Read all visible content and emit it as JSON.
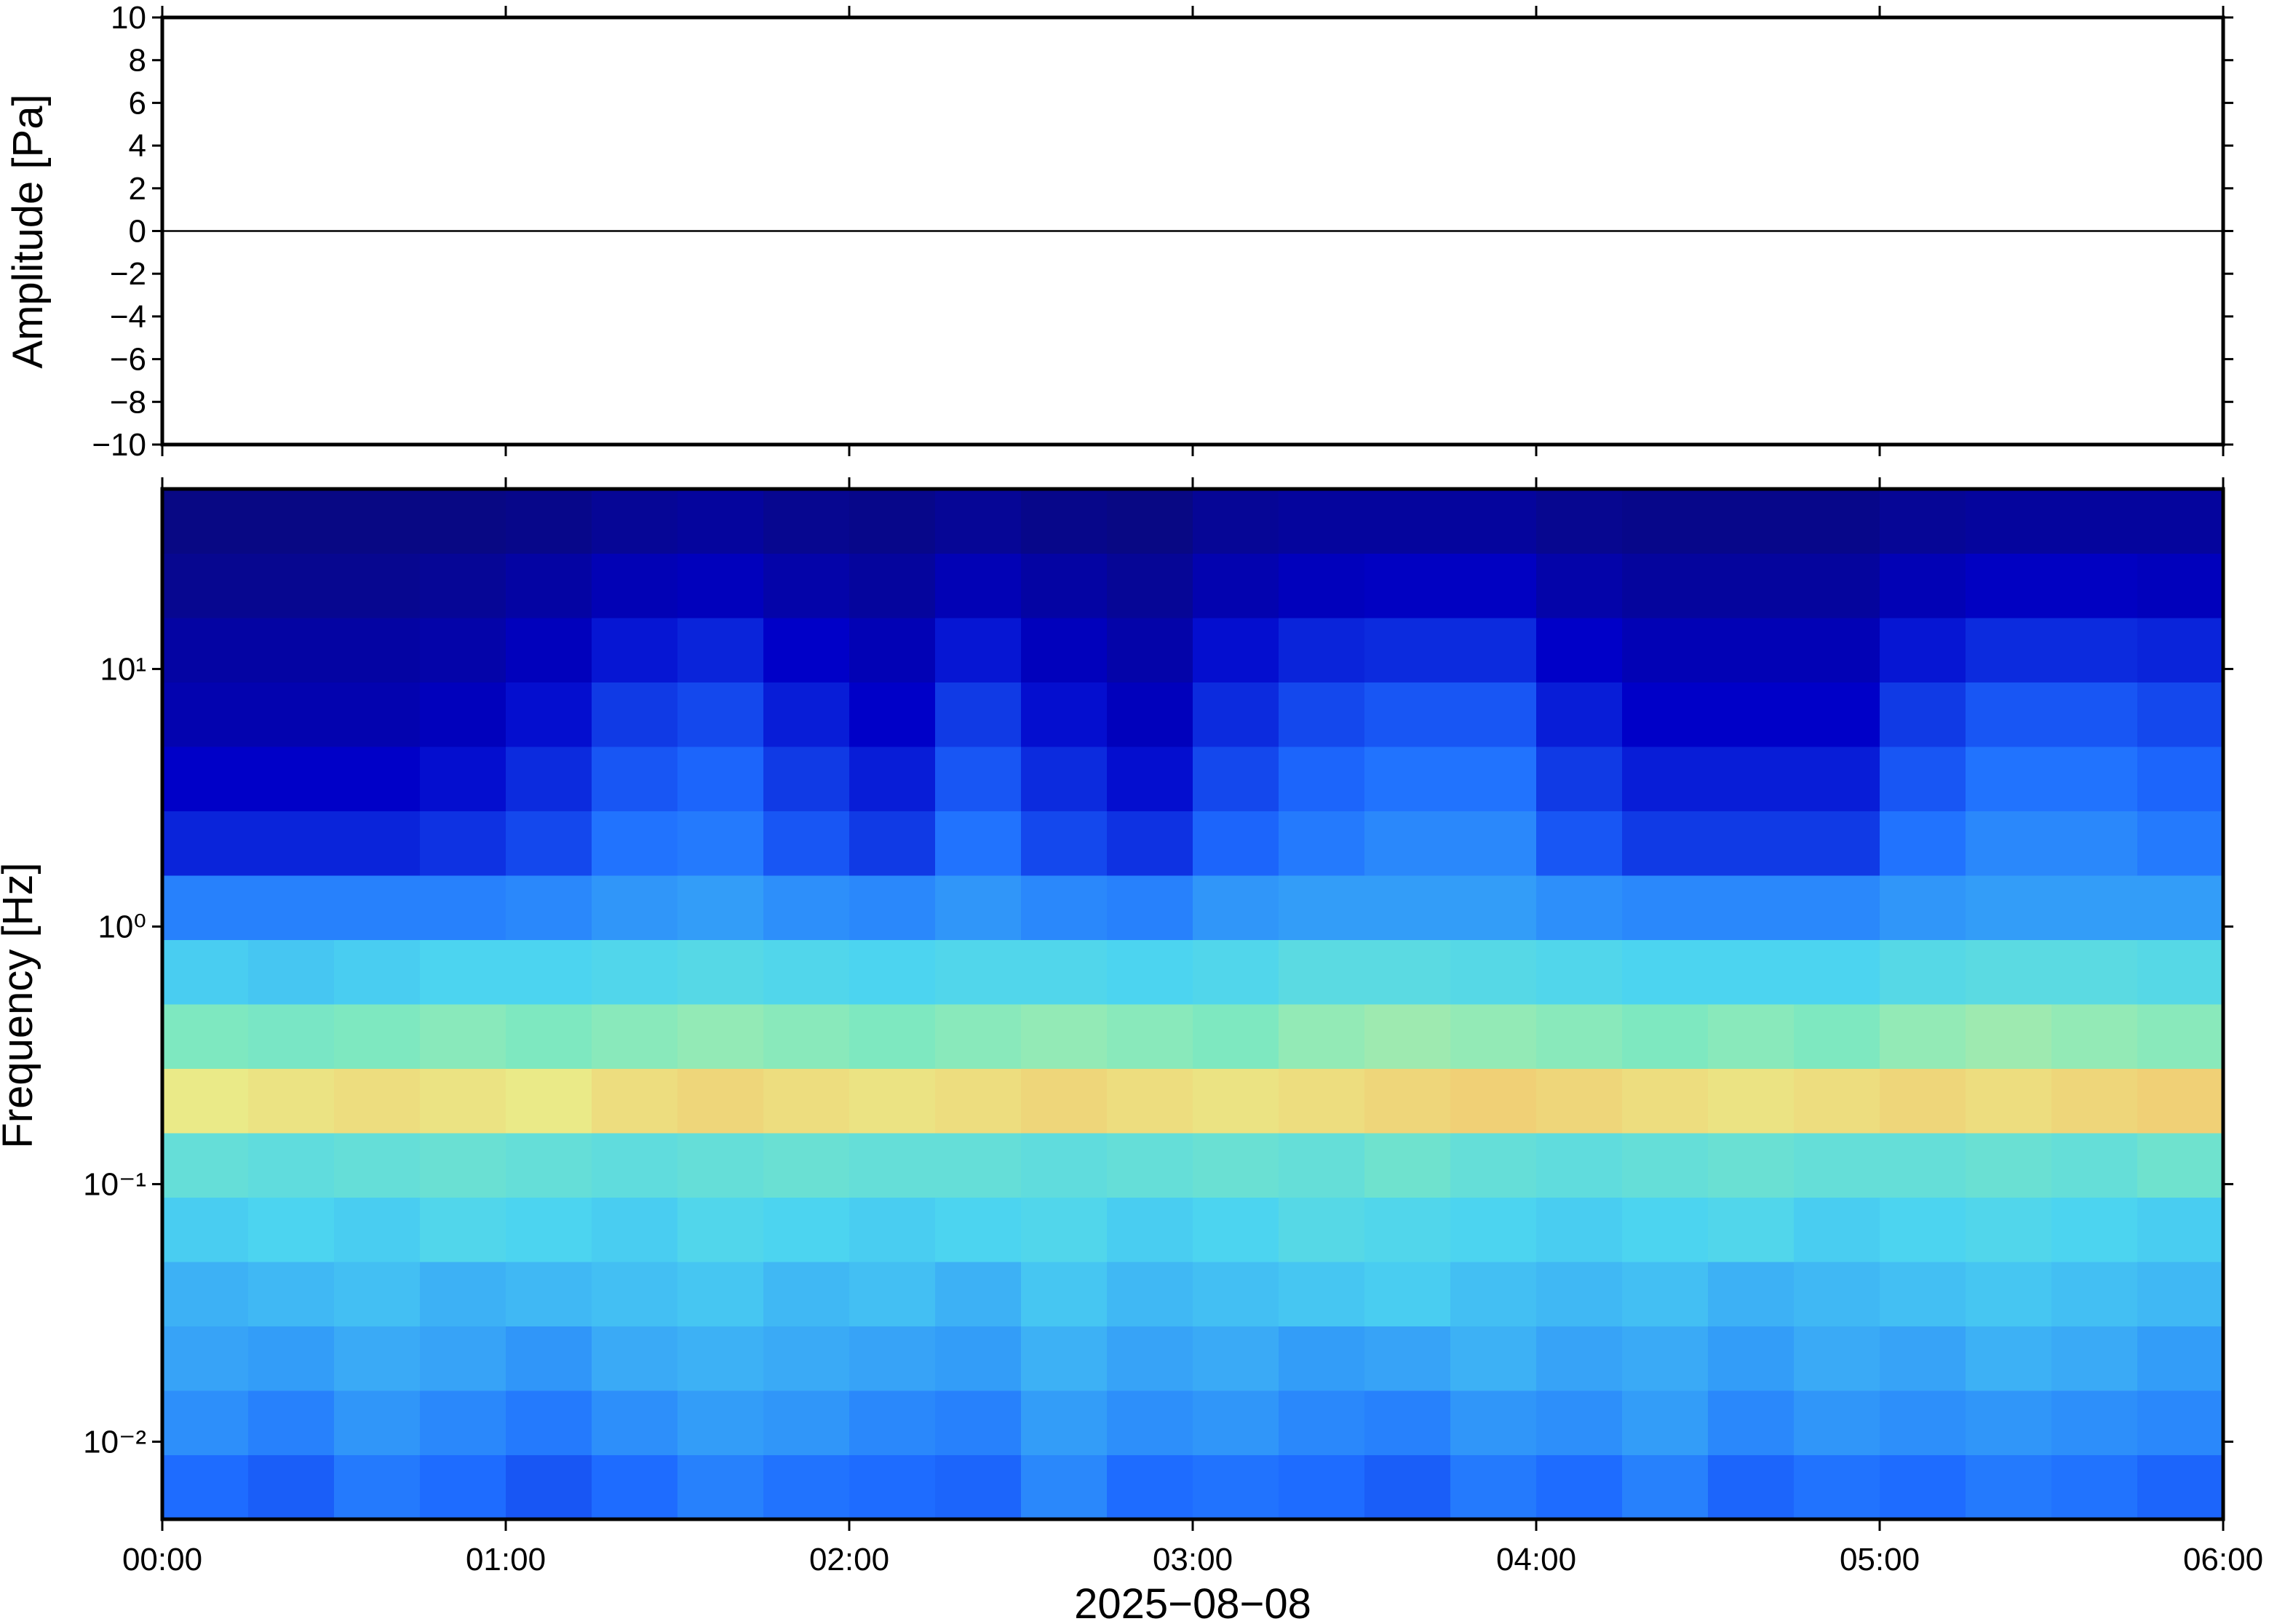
{
  "chart_data": [
    {
      "type": "line",
      "ylabel": "Amplitude [Pa]",
      "color": "#000000",
      "x": [
        0,
        30,
        60,
        90,
        120,
        150,
        180,
        210,
        240,
        270,
        300,
        330,
        360
      ],
      "values": [
        0,
        0,
        0,
        0,
        0,
        0,
        0,
        0,
        0,
        0,
        0,
        0,
        0
      ],
      "xlim": [
        0,
        360
      ],
      "xticks": [
        0,
        60,
        120,
        180,
        240,
        300,
        360
      ],
      "ylim": [
        -10,
        10
      ],
      "yticks": [
        {
          "value": -10,
          "label": "−10"
        },
        {
          "value": -8,
          "label": "−8"
        },
        {
          "value": -6,
          "label": "−6"
        },
        {
          "value": -4,
          "label": "−4"
        },
        {
          "value": -2,
          "label": "−2"
        },
        0,
        2,
        4,
        6,
        8,
        10
      ]
    },
    {
      "type": "heatmap",
      "ylabel": "Frequency [Hz]",
      "xlabel": "2025−08−08",
      "colormap": "jet",
      "zlim": [
        0,
        1
      ],
      "log_y": true,
      "xlim": [
        0,
        360
      ],
      "xticks": [
        {
          "value": 0,
          "label": "00:00"
        },
        {
          "value": 60,
          "label": "01:00"
        },
        {
          "value": 120,
          "label": "02:00"
        },
        {
          "value": 180,
          "label": "03:00"
        },
        {
          "value": 240,
          "label": "04:00"
        },
        {
          "value": 300,
          "label": "05:00"
        },
        {
          "value": 360,
          "label": "06:00"
        }
      ],
      "ylim": [
        0.005,
        50
      ],
      "yticks": [
        {
          "value": 0.01,
          "label": "10⁻²"
        },
        {
          "value": 0.1,
          "label": "10⁻¹"
        },
        {
          "value": 1,
          "label": "10⁰"
        },
        {
          "value": 10,
          "label": "10¹"
        }
      ],
      "bins": [
        0,
        15,
        30,
        45,
        60,
        75,
        90,
        105,
        120,
        135,
        150,
        165,
        180,
        195,
        210,
        225,
        240,
        255,
        270,
        285,
        300,
        315,
        330,
        345,
        360
      ],
      "y_bins": [
        0.005,
        0.0089,
        0.0158,
        0.0281,
        0.05,
        0.0889,
        0.158,
        0.281,
        0.5,
        0.889,
        1.58,
        2.81,
        5,
        8.89,
        15.8,
        28.1,
        50
      ],
      "values": [
        [
          0.3,
          0.28,
          0.32,
          0.3,
          0.27,
          0.3,
          0.33,
          0.31,
          0.3,
          0.29,
          0.34,
          0.3,
          0.31,
          0.3,
          0.28,
          0.32,
          0.3,
          0.33,
          0.29,
          0.31,
          0.3,
          0.32,
          0.31,
          0.29
        ],
        [
          0.35,
          0.33,
          0.36,
          0.34,
          0.32,
          0.35,
          0.37,
          0.36,
          0.34,
          0.33,
          0.37,
          0.35,
          0.36,
          0.34,
          0.33,
          0.36,
          0.35,
          0.37,
          0.34,
          0.36,
          0.35,
          0.36,
          0.35,
          0.34
        ],
        [
          0.38,
          0.37,
          0.39,
          0.38,
          0.36,
          0.39,
          0.4,
          0.39,
          0.38,
          0.37,
          0.4,
          0.38,
          0.39,
          0.37,
          0.38,
          0.4,
          0.38,
          0.39,
          0.37,
          0.39,
          0.38,
          0.4,
          0.39,
          0.37
        ],
        [
          0.4,
          0.41,
          0.42,
          0.4,
          0.41,
          0.42,
          0.43,
          0.41,
          0.42,
          0.4,
          0.43,
          0.41,
          0.42,
          0.43,
          0.44,
          0.42,
          0.41,
          0.42,
          0.4,
          0.41,
          0.42,
          0.43,
          0.42,
          0.41
        ],
        [
          0.44,
          0.45,
          0.44,
          0.46,
          0.45,
          0.44,
          0.46,
          0.45,
          0.44,
          0.45,
          0.46,
          0.44,
          0.45,
          0.47,
          0.46,
          0.45,
          0.44,
          0.45,
          0.46,
          0.44,
          0.45,
          0.46,
          0.45,
          0.44
        ],
        [
          0.5,
          0.49,
          0.5,
          0.51,
          0.5,
          0.49,
          0.5,
          0.51,
          0.5,
          0.5,
          0.49,
          0.5,
          0.51,
          0.5,
          0.52,
          0.5,
          0.49,
          0.5,
          0.51,
          0.5,
          0.5,
          0.51,
          0.5,
          0.52
        ],
        [
          0.66,
          0.67,
          0.68,
          0.67,
          0.66,
          0.68,
          0.69,
          0.68,
          0.67,
          0.68,
          0.69,
          0.68,
          0.67,
          0.68,
          0.69,
          0.7,
          0.69,
          0.68,
          0.67,
          0.68,
          0.69,
          0.68,
          0.69,
          0.7
        ],
        [
          0.55,
          0.54,
          0.55,
          0.56,
          0.55,
          0.56,
          0.57,
          0.56,
          0.55,
          0.56,
          0.57,
          0.56,
          0.55,
          0.57,
          0.58,
          0.57,
          0.56,
          0.55,
          0.56,
          0.55,
          0.57,
          0.58,
          0.57,
          0.56
        ],
        [
          0.44,
          0.43,
          0.44,
          0.45,
          0.45,
          0.46,
          0.47,
          0.46,
          0.45,
          0.46,
          0.46,
          0.45,
          0.46,
          0.48,
          0.48,
          0.47,
          0.46,
          0.45,
          0.45,
          0.45,
          0.47,
          0.48,
          0.48,
          0.47
        ],
        [
          0.33,
          0.33,
          0.33,
          0.33,
          0.34,
          0.36,
          0.37,
          0.35,
          0.34,
          0.36,
          0.34,
          0.33,
          0.36,
          0.37,
          0.37,
          0.37,
          0.35,
          0.34,
          0.34,
          0.34,
          0.36,
          0.37,
          0.37,
          0.37
        ],
        [
          0.2,
          0.2,
          0.2,
          0.22,
          0.25,
          0.31,
          0.32,
          0.27,
          0.23,
          0.31,
          0.25,
          0.22,
          0.29,
          0.32,
          0.34,
          0.34,
          0.27,
          0.23,
          0.23,
          0.23,
          0.31,
          0.34,
          0.34,
          0.32
        ],
        [
          0.15,
          0.15,
          0.15,
          0.17,
          0.21,
          0.27,
          0.29,
          0.23,
          0.19,
          0.27,
          0.21,
          0.17,
          0.25,
          0.29,
          0.31,
          0.31,
          0.23,
          0.19,
          0.19,
          0.19,
          0.27,
          0.31,
          0.31,
          0.29
        ],
        [
          0.11,
          0.11,
          0.11,
          0.13,
          0.17,
          0.23,
          0.25,
          0.19,
          0.15,
          0.23,
          0.17,
          0.13,
          0.21,
          0.25,
          0.27,
          0.27,
          0.19,
          0.15,
          0.15,
          0.15,
          0.23,
          0.27,
          0.27,
          0.25
        ],
        [
          0.09,
          0.09,
          0.09,
          0.1,
          0.13,
          0.18,
          0.2,
          0.15,
          0.12,
          0.18,
          0.13,
          0.1,
          0.17,
          0.2,
          0.21,
          0.21,
          0.15,
          0.12,
          0.12,
          0.12,
          0.18,
          0.21,
          0.21,
          0.2
        ],
        [
          0.06,
          0.06,
          0.06,
          0.07,
          0.09,
          0.12,
          0.13,
          0.1,
          0.08,
          0.12,
          0.09,
          0.07,
          0.11,
          0.13,
          0.14,
          0.14,
          0.1,
          0.08,
          0.08,
          0.08,
          0.12,
          0.14,
          0.14,
          0.13
        ],
        [
          0.04,
          0.04,
          0.04,
          0.04,
          0.05,
          0.07,
          0.08,
          0.06,
          0.05,
          0.07,
          0.05,
          0.04,
          0.07,
          0.08,
          0.08,
          0.08,
          0.06,
          0.05,
          0.05,
          0.05,
          0.07,
          0.08,
          0.08,
          0.08
        ]
      ]
    }
  ]
}
